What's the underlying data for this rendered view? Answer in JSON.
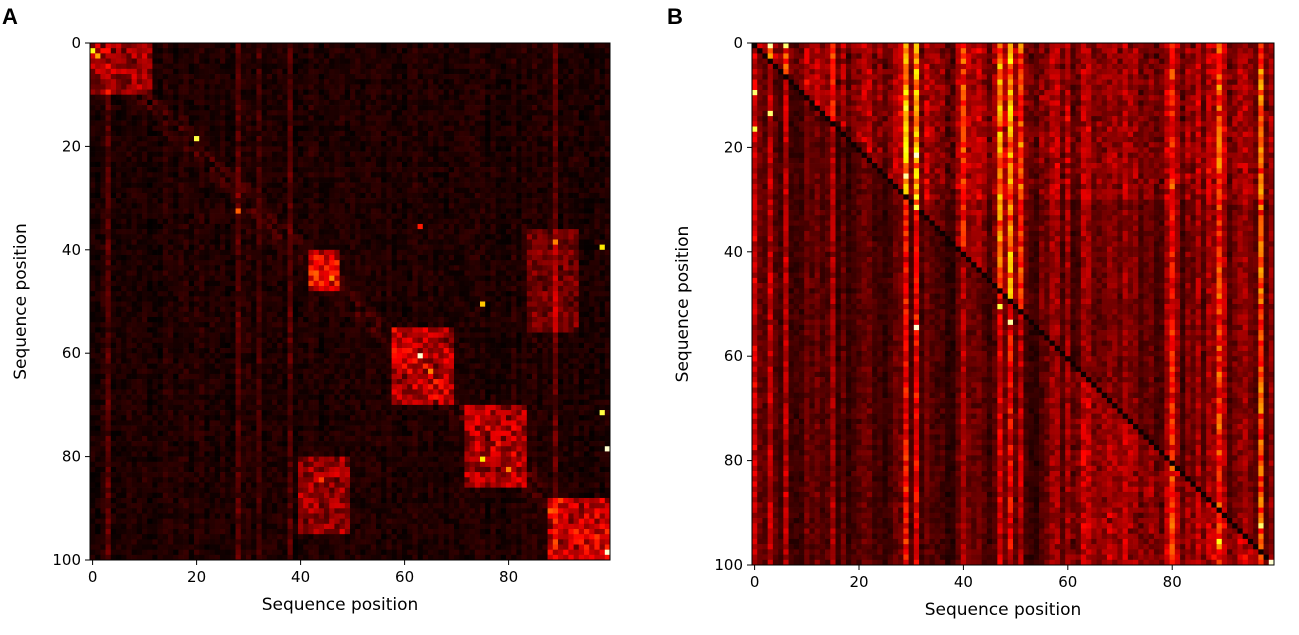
{
  "figure": {
    "panels": [
      {
        "letter": "A"
      },
      {
        "letter": "B"
      }
    ]
  },
  "chart_data": [
    {
      "type": "heatmap",
      "panel": "A",
      "title": "",
      "xlabel": "Sequence position",
      "ylabel": "Sequence position",
      "n": 100,
      "xlim": [
        0,
        99
      ],
      "ylim": [
        100,
        0
      ],
      "x_ticks": [
        0,
        20,
        40,
        60,
        80
      ],
      "y_ticks": [
        0,
        20,
        40,
        60,
        80,
        100
      ],
      "colormap": "hot",
      "colorbar": false,
      "value_range": [
        0,
        1
      ],
      "pattern": "mostly near-zero attention with sparse local blocks along the diagonal",
      "hotspots": [
        {
          "row": 1,
          "col": 0,
          "value": 0.75
        },
        {
          "row": 2,
          "col": 1,
          "value": 0.6
        },
        {
          "row": 18,
          "col": 20,
          "value": 0.8
        },
        {
          "row": 32,
          "col": 28,
          "value": 0.5
        },
        {
          "row": 35,
          "col": 63,
          "value": 0.4
        },
        {
          "row": 38,
          "col": 89,
          "value": 0.55
        },
        {
          "row": 39,
          "col": 98,
          "value": 0.7
        },
        {
          "row": 44,
          "col": 43,
          "value": 0.5
        },
        {
          "row": 46,
          "col": 44,
          "value": 0.45
        },
        {
          "row": 50,
          "col": 75,
          "value": 0.65
        },
        {
          "row": 60,
          "col": 63,
          "value": 0.95
        },
        {
          "row": 63,
          "col": 65,
          "value": 0.55
        },
        {
          "row": 71,
          "col": 98,
          "value": 0.8
        },
        {
          "row": 78,
          "col": 99,
          "value": 0.95
        },
        {
          "row": 80,
          "col": 75,
          "value": 0.7
        },
        {
          "row": 82,
          "col": 80,
          "value": 0.55
        },
        {
          "row": 84,
          "col": 44,
          "value": 0.45
        },
        {
          "row": 90,
          "col": 88,
          "value": 0.5
        },
        {
          "row": 98,
          "col": 99,
          "value": 0.95
        }
      ],
      "blocks": [
        {
          "rows": [
            0,
            10
          ],
          "cols": [
            0,
            12
          ],
          "value": 0.22
        },
        {
          "rows": [
            40,
            48
          ],
          "cols": [
            42,
            48
          ],
          "value": 0.35
        },
        {
          "rows": [
            55,
            70
          ],
          "cols": [
            58,
            70
          ],
          "value": 0.28
        },
        {
          "rows": [
            70,
            86
          ],
          "cols": [
            72,
            84
          ],
          "value": 0.25
        },
        {
          "rows": [
            80,
            95
          ],
          "cols": [
            40,
            50
          ],
          "value": 0.22
        },
        {
          "rows": [
            36,
            56
          ],
          "cols": [
            84,
            94
          ],
          "value": 0.15
        },
        {
          "rows": [
            88,
            100
          ],
          "cols": [
            88,
            100
          ],
          "value": 0.3
        }
      ]
    },
    {
      "type": "heatmap",
      "panel": "B",
      "title": "",
      "xlabel": "Sequence position",
      "ylabel": "Sequence position",
      "n": 100,
      "xlim": [
        0,
        99
      ],
      "ylim": [
        100,
        0
      ],
      "x_ticks": [
        0,
        20,
        40,
        60,
        80
      ],
      "y_ticks": [
        0,
        20,
        40,
        60,
        80,
        100
      ],
      "colormap": "hot",
      "colorbar": false,
      "value_range": [
        0,
        1
      ],
      "pattern": "broad column-wise attention; diagonal near zero; upper-left and lower-right stronger",
      "bright_columns": [
        {
          "col": 0,
          "value": 0.55
        },
        {
          "col": 3,
          "value": 0.5
        },
        {
          "col": 6,
          "value": 0.5
        },
        {
          "col": 15,
          "value": 0.45
        },
        {
          "col": 29,
          "value": 0.7
        },
        {
          "col": 31,
          "value": 0.65
        },
        {
          "col": 40,
          "value": 0.45
        },
        {
          "col": 47,
          "value": 0.6
        },
        {
          "col": 49,
          "value": 0.65
        },
        {
          "col": 51,
          "value": 0.5
        },
        {
          "col": 80,
          "value": 0.45
        },
        {
          "col": 89,
          "value": 0.5
        },
        {
          "col": 97,
          "value": 0.55
        }
      ],
      "hotspots": [
        {
          "row": 0,
          "col": 3,
          "value": 0.9
        },
        {
          "row": 0,
          "col": 6,
          "value": 0.85
        },
        {
          "row": 9,
          "col": 0,
          "value": 0.85
        },
        {
          "row": 13,
          "col": 3,
          "value": 0.85
        },
        {
          "row": 16,
          "col": 0,
          "value": 0.8
        },
        {
          "row": 21,
          "col": 31,
          "value": 0.95
        },
        {
          "row": 25,
          "col": 29,
          "value": 0.9
        },
        {
          "row": 31,
          "col": 31,
          "value": 0.8
        },
        {
          "row": 50,
          "col": 47,
          "value": 0.8
        },
        {
          "row": 53,
          "col": 49,
          "value": 0.9
        },
        {
          "row": 54,
          "col": 31,
          "value": 0.95
        },
        {
          "row": 92,
          "col": 97,
          "value": 0.85
        },
        {
          "row": 95,
          "col": 89,
          "value": 0.75
        },
        {
          "row": 99,
          "col": 99,
          "value": 0.95
        }
      ]
    }
  ]
}
